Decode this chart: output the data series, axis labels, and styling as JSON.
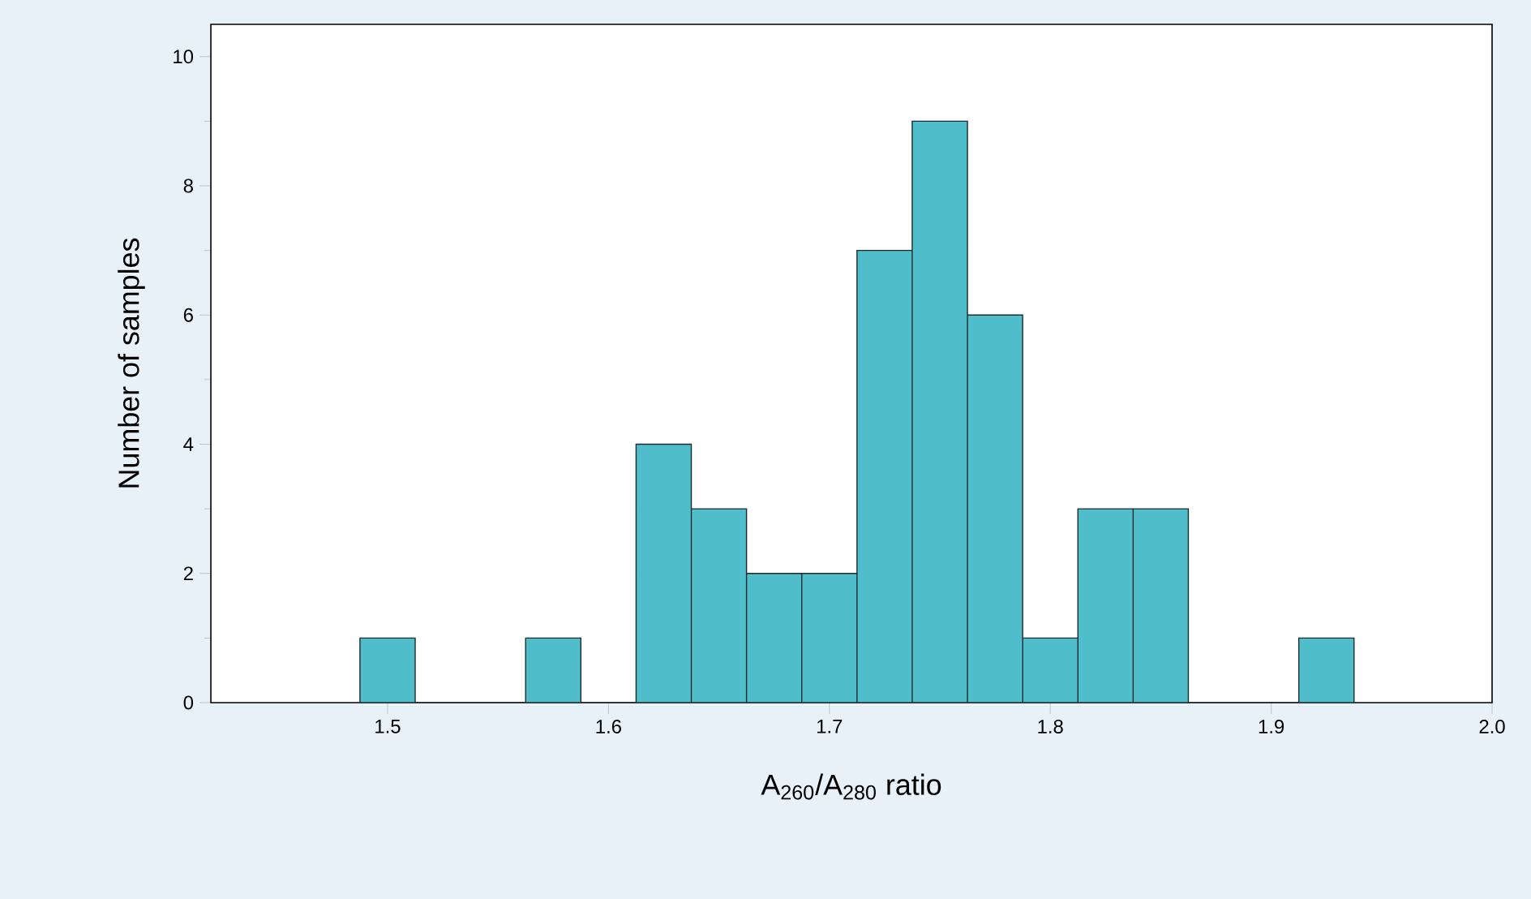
{
  "chart_data": {
    "type": "histogram",
    "xlabel": "A$_{260}$/A$_{280}$ ratio",
    "ylabel": "Number of samples",
    "bins": [
      1.4875,
      1.5125,
      1.5375,
      1.5625,
      1.5875,
      1.6125,
      1.6375,
      1.6625,
      1.6875,
      1.7125,
      1.7375,
      1.7625,
      1.7875,
      1.8125,
      1.8375,
      1.8625,
      1.8875,
      1.9125,
      1.9375
    ],
    "values": [
      1,
      0,
      0,
      1,
      0,
      4,
      3,
      2,
      2,
      7,
      9,
      6,
      1,
      3,
      3,
      0,
      0,
      1
    ],
    "color": "#4fbdca",
    "xlim": [
      1.42,
      2.0
    ],
    "xticks": [
      1.5,
      1.6,
      1.7,
      1.8,
      1.9,
      {
        "value": 2.0,
        "label": "2.0"
      }
    ],
    "ylim": [
      0,
      10.5
    ],
    "yticks": [
      0,
      2,
      4,
      6,
      8,
      10
    ],
    "grid": false
  }
}
